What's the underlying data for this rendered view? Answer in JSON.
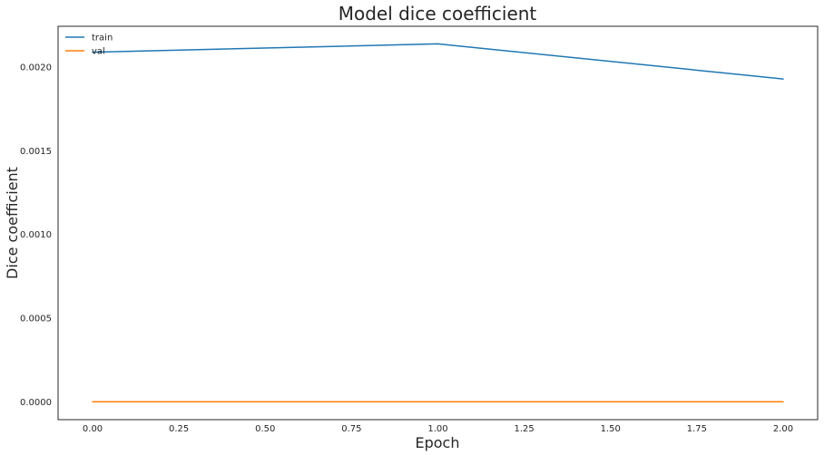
{
  "chart_data": {
    "type": "line",
    "title": "Model dice coefficient",
    "xlabel": "Epoch",
    "ylabel": "Dice coefficient",
    "x": [
      0,
      1,
      2
    ],
    "xlim": [
      -0.1,
      2.1
    ],
    "ylim": [
      -0.000107,
      0.002245
    ],
    "xticks": [
      "0.00",
      "0.25",
      "0.50",
      "0.75",
      "1.00",
      "1.25",
      "1.50",
      "1.75",
      "2.00"
    ],
    "yticks": [
      "0.0000",
      "0.0005",
      "0.0010",
      "0.0015",
      "0.0020"
    ],
    "series": [
      {
        "name": "train",
        "values": [
          0.00209,
          0.00214,
          0.00193
        ],
        "color": "#1f77b4"
      },
      {
        "name": "val",
        "values": [
          0.0,
          0.0,
          0.0
        ],
        "color": "#ff7f0e"
      }
    ],
    "legend": "top-left",
    "grid": false
  }
}
